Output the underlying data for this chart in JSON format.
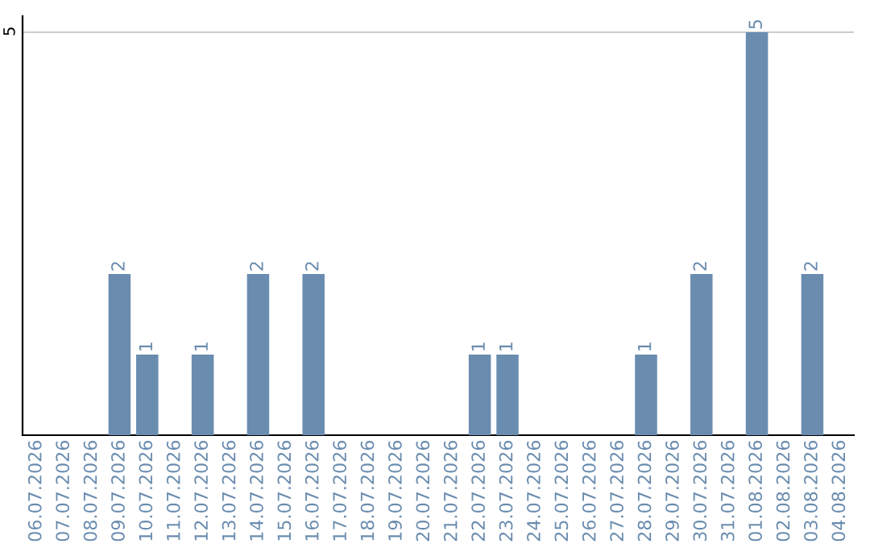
{
  "chart_data": {
    "type": "bar",
    "categories": [
      "06.07.2026",
      "07.07.2026",
      "08.07.2026",
      "09.07.2026",
      "10.07.2026",
      "11.07.2026",
      "12.07.2026",
      "13.07.2026",
      "14.07.2026",
      "15.07.2026",
      "16.07.2026",
      "17.07.2026",
      "18.07.2026",
      "19.07.2026",
      "20.07.2026",
      "21.07.2026",
      "22.07.2026",
      "23.07.2026",
      "24.07.2026",
      "25.07.2026",
      "26.07.2026",
      "27.07.2026",
      "28.07.2026",
      "29.07.2026",
      "30.07.2026",
      "31.07.2026",
      "01.08.2026",
      "02.08.2026",
      "03.08.2026",
      "04.08.2026"
    ],
    "values": [
      0,
      0,
      0,
      2,
      1,
      0,
      1,
      0,
      2,
      0,
      2,
      0,
      0,
      0,
      0,
      0,
      1,
      1,
      0,
      0,
      0,
      0,
      1,
      0,
      2,
      0,
      5,
      0,
      2,
      0
    ],
    "value_labels": [
      null,
      null,
      null,
      "2",
      "1",
      null,
      "1",
      null,
      "2",
      null,
      "2",
      null,
      null,
      null,
      null,
      null,
      "1",
      "1",
      null,
      null,
      null,
      null,
      "1",
      null,
      "2",
      null,
      "5",
      null,
      "2",
      null
    ],
    "color": "#6a8caf",
    "ylim": [
      0,
      5.2
    ],
    "yticks": [
      5
    ],
    "grid": "y"
  }
}
